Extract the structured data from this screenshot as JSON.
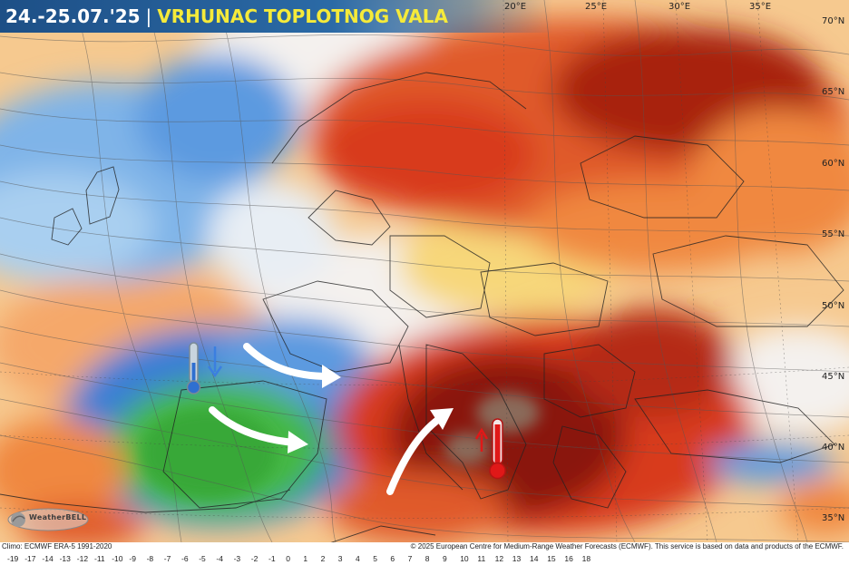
{
  "header": {
    "dates": "24.-25.07.'25",
    "separator": "|",
    "subtitle": "VRHUNAC TOPLOTNOG VALA"
  },
  "longitude_labels": [
    "20°E",
    "25°E",
    "30°E",
    "35°E"
  ],
  "latitude_labels": [
    "70°N",
    "65°N",
    "60°N",
    "55°N",
    "50°N",
    "45°N",
    "40°N",
    "35°N"
  ],
  "footer": {
    "climo": "Climo: ECMWF ERA-5 1991-2020",
    "copyright": "© 2025 European Centre for Medium-Range Weather Forecasts (ECMWF). This service is based on data and products of the ECMWF."
  },
  "color_scale": {
    "values": [
      "-19",
      "-17",
      "-14",
      "-13",
      "-12",
      "-11",
      "-10",
      "-9",
      "-8",
      "-7",
      "-6",
      "-5",
      "-4",
      "-3",
      "-2",
      "-1",
      "0",
      "1",
      "2",
      "3",
      "4",
      "5",
      "6",
      "7",
      "8",
      "9",
      "10",
      "11",
      "12",
      "13",
      "14",
      "15",
      "16",
      "18"
    ],
    "colors": {
      "green": "#3bb33b",
      "blue": "#3a7fd5",
      "light_blue": "#a9cff0",
      "neutral": "#f4f1ee",
      "yellow": "#f7d77a",
      "orange": "#f0883f",
      "red": "#d83a1f",
      "dark_red": "#8a1208",
      "brown": "#8a6a5a"
    }
  },
  "icons": {
    "cold": "thermometer-cold-icon",
    "hot": "thermometer-hot-icon",
    "arrow": "flow-arrow-icon"
  },
  "logo": {
    "text": "WeatherBELL"
  }
}
